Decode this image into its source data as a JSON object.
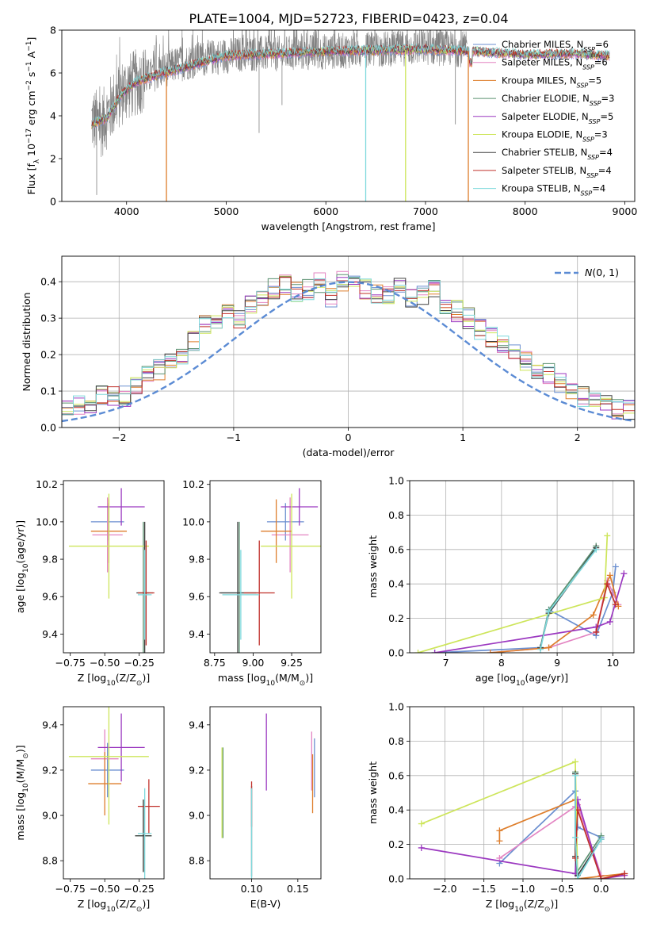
{
  "figure": {
    "title": "PLATE=1004, MJD=52723, FIBERID=0423, z=0.04"
  },
  "models": [
    {
      "name": "Chabrier MILES",
      "nssp": "6",
      "color": "#6b8fd0"
    },
    {
      "name": "Salpeter MILES",
      "nssp": "6",
      "color": "#e384c2"
    },
    {
      "name": "Kroupa MILES",
      "nssp": "5",
      "color": "#de7e2c"
    },
    {
      "name": "Chabrier ELODIE",
      "nssp": "3",
      "color": "#5a9070"
    },
    {
      "name": "Salpeter ELODIE",
      "nssp": "5",
      "color": "#9b38c0"
    },
    {
      "name": "Kroupa ELODIE",
      "nssp": "3",
      "color": "#cde55a"
    },
    {
      "name": "Chabrier STELIB",
      "nssp": "4",
      "color": "#404040"
    },
    {
      "name": "Salpeter STELIB",
      "nssp": "4",
      "color": "#c0302a"
    },
    {
      "name": "Kroupa STELIB",
      "nssp": "4",
      "color": "#7dd8dc"
    }
  ],
  "chart_data": [
    {
      "id": "spectrum",
      "type": "line",
      "xlabel": "wavelength [Angstrom, rest frame]",
      "ylabel": "Flux [f_λ 10^-17 erg cm^-2 s^-1 A^-1]",
      "xlim": [
        3350,
        9100
      ],
      "ylim": [
        0,
        8
      ],
      "xticks": [
        4000,
        5000,
        6000,
        7000,
        8000,
        9000
      ],
      "yticks": [
        0,
        2,
        4,
        6,
        8
      ],
      "data_color": "#808080",
      "data_x_range": [
        3650,
        7420
      ],
      "data_continuum": [
        [
          3650,
          3.8
        ],
        [
          3750,
          3.6
        ],
        [
          3900,
          4.8
        ],
        [
          4000,
          5.3
        ],
        [
          4200,
          5.8
        ],
        [
          4500,
          6.4
        ],
        [
          4800,
          6.7
        ],
        [
          5200,
          6.9
        ],
        [
          5600,
          6.9
        ],
        [
          6000,
          7.0
        ],
        [
          6500,
          7.1
        ],
        [
          7000,
          7.2
        ],
        [
          7420,
          7.1
        ]
      ],
      "model_x_range": [
        3650,
        8850
      ],
      "model_continuum": [
        [
          3650,
          3.6
        ],
        [
          3800,
          3.9
        ],
        [
          3950,
          5.0
        ],
        [
          4100,
          5.6
        ],
        [
          4300,
          5.9
        ],
        [
          4600,
          6.3
        ],
        [
          5000,
          6.8
        ],
        [
          5500,
          6.9
        ],
        [
          6000,
          7.0
        ],
        [
          6500,
          7.05
        ],
        [
          7000,
          7.1
        ],
        [
          7500,
          7.0
        ],
        [
          8000,
          6.85
        ],
        [
          8500,
          6.9
        ],
        [
          8850,
          6.8
        ]
      ],
      "model_dropouts": [
        [
          4400,
          2
        ],
        [
          6400,
          8
        ],
        [
          6800,
          5
        ],
        [
          7430,
          2
        ]
      ],
      "legend": "upper right"
    },
    {
      "id": "residuals",
      "type": "line",
      "xlabel": "(data-model)/error",
      "ylabel": "Normed distribution",
      "xlim": [
        -2.5,
        2.5
      ],
      "ylim": [
        0,
        0.47
      ],
      "xticks": [
        -2,
        -1,
        0,
        1,
        2
      ],
      "yticks": [
        0.0,
        0.1,
        0.2,
        0.3,
        0.4
      ],
      "grid": true,
      "hist_bin_width": 0.1,
      "hist_base": [
        0.02,
        0.03,
        0.04,
        0.045,
        0.05,
        0.055,
        0.06,
        0.07,
        0.085,
        0.09,
        0.085,
        0.12,
        0.14,
        0.16,
        0.18,
        0.2,
        0.24,
        0.28,
        0.3,
        0.31,
        0.3,
        0.34,
        0.36,
        0.38,
        0.39,
        0.37,
        0.38,
        0.4,
        0.36,
        0.4,
        0.41,
        0.38,
        0.37,
        0.36,
        0.4,
        0.35,
        0.36,
        0.38,
        0.33,
        0.32,
        0.3,
        0.27,
        0.25,
        0.23,
        0.21,
        0.18,
        0.16,
        0.15,
        0.12,
        0.1,
        0.085,
        0.08,
        0.07,
        0.05,
        0.045,
        0.04,
        0.035,
        0.03,
        0.025,
        0.025
      ],
      "gauss_name": "N(0,1)",
      "gauss_color": "#5b8bd4",
      "legend": "upper right"
    },
    {
      "id": "age-vs-Z",
      "type": "scatter",
      "xlabel": "Z [log10(Z/Z⊙)]",
      "ylabel": "age [log10(age/yr)]",
      "xlim": [
        -0.8,
        -0.07
      ],
      "ylim": [
        9.3,
        10.22
      ],
      "xticks": [
        -0.75,
        -0.5,
        -0.25
      ],
      "yticks": [
        9.4,
        9.6,
        9.8,
        10.0,
        10.2
      ],
      "points": [
        {
          "x": -0.48,
          "y": 10.0,
          "xerr": 0.12,
          "yerr": 0.1
        },
        {
          "x": -0.48,
          "y": 9.93,
          "xerr": 0.11,
          "yerr": 0.2
        },
        {
          "x": -0.47,
          "y": 9.95,
          "xerr": 0.13,
          "yerr": 0.17
        },
        {
          "x": -0.22,
          "y": 9.62,
          "xerr": 0.04,
          "yerr": 0.38
        },
        {
          "x": -0.38,
          "y": 10.08,
          "xerr": 0.17,
          "yerr": 0.1
        },
        {
          "x": -0.47,
          "y": 9.87,
          "xerr": 0.29,
          "yerr": 0.28
        },
        {
          "x": -0.21,
          "y": 9.62,
          "xerr": 0.06,
          "yerr": 0.38
        },
        {
          "x": -0.2,
          "y": 9.62,
          "xerr": 0.06,
          "yerr": 0.28
        },
        {
          "x": -0.21,
          "y": 9.61,
          "xerr": 0.05,
          "yerr": 0.24
        }
      ]
    },
    {
      "id": "age-vs-mass",
      "type": "scatter",
      "xlabel": "mass [log10(M/M⊙)]",
      "ylabel": "",
      "xlim": [
        8.72,
        9.44
      ],
      "ylim": [
        9.3,
        10.22
      ],
      "xticks": [
        8.75,
        9.0,
        9.25
      ],
      "yticks": [
        9.4,
        9.6,
        9.8,
        10.0,
        10.2
      ],
      "points": [
        {
          "x": 9.21,
          "y": 10.0,
          "xerr": 0.12,
          "yerr": 0.1
        },
        {
          "x": 9.24,
          "y": 9.93,
          "xerr": 0.12,
          "yerr": 0.2
        },
        {
          "x": 9.15,
          "y": 9.95,
          "xerr": 0.1,
          "yerr": 0.17
        },
        {
          "x": 8.91,
          "y": 9.62,
          "xerr": 0.12,
          "yerr": 0.38
        },
        {
          "x": 9.3,
          "y": 10.08,
          "xerr": 0.12,
          "yerr": 0.1
        },
        {
          "x": 9.25,
          "y": 9.87,
          "xerr": 0.2,
          "yerr": 0.28
        },
        {
          "x": 8.9,
          "y": 9.62,
          "xerr": 0.12,
          "yerr": 0.38
        },
        {
          "x": 9.04,
          "y": 9.62,
          "xerr": 0.1,
          "yerr": 0.28
        },
        {
          "x": 8.92,
          "y": 9.61,
          "xerr": 0.12,
          "yerr": 0.24
        }
      ]
    },
    {
      "id": "mass-weight-vs-age",
      "type": "line",
      "xlabel": "age [log10(age/yr)]",
      "ylabel": "mass weight",
      "xlim": [
        6.35,
        10.38
      ],
      "ylim": [
        0,
        1.0
      ],
      "xticks": [
        7,
        8,
        9,
        10
      ],
      "yticks": [
        0.0,
        0.2,
        0.4,
        0.6,
        0.8,
        1.0
      ],
      "grid": true,
      "series": [
        {
          "x": [
            6.8,
            8.7,
            8.85,
            9.7,
            10.0,
            10.05
          ],
          "y": [
            0.0,
            0.03,
            0.25,
            0.1,
            0.35,
            0.5
          ]
        },
        {
          "x": [
            7.8,
            8.85,
            9.7,
            9.9,
            10.1
          ],
          "y": [
            0.0,
            0.03,
            0.12,
            0.42,
            0.28
          ]
        },
        {
          "x": [
            7.8,
            8.85,
            9.65,
            9.95,
            10.1
          ],
          "y": [
            0.0,
            0.03,
            0.22,
            0.45,
            0.27
          ]
        },
        {
          "x": [
            8.7,
            8.85,
            9.7
          ],
          "y": [
            0.03,
            0.25,
            0.62
          ]
        },
        {
          "x": [
            6.8,
            9.7,
            9.95,
            10.2
          ],
          "y": [
            0.0,
            0.15,
            0.18,
            0.46
          ]
        },
        {
          "x": [
            6.5,
            9.85,
            9.9
          ],
          "y": [
            0.0,
            0.32,
            0.68
          ]
        },
        {
          "x": [
            8.7,
            8.85,
            9.7
          ],
          "y": [
            0.03,
            0.23,
            0.61
          ]
        },
        {
          "x": [
            9.7,
            9.9,
            10.05
          ],
          "y": [
            0.12,
            0.4,
            0.28
          ]
        },
        {
          "x": [
            8.7,
            8.85,
            9.7
          ],
          "y": [
            0.02,
            0.24,
            0.6
          ]
        }
      ]
    },
    {
      "id": "mass-vs-Z",
      "type": "scatter",
      "xlabel": "Z [log10(Z/Z⊙)]",
      "ylabel": "mass [log10(M/M⊙)]",
      "xlim": [
        -0.8,
        -0.07
      ],
      "ylim": [
        8.72,
        9.48
      ],
      "xticks": [
        -0.75,
        -0.5,
        -0.25
      ],
      "yticks": [
        8.8,
        9.0,
        9.2,
        9.4
      ],
      "points": [
        {
          "x": -0.48,
          "y": 9.2,
          "xerr": 0.12,
          "yerr": 0.12
        },
        {
          "x": -0.5,
          "y": 9.25,
          "xerr": 0.1,
          "yerr": 0.13
        },
        {
          "x": -0.5,
          "y": 9.14,
          "xerr": 0.12,
          "yerr": 0.14
        },
        {
          "x": -0.22,
          "y": 8.91,
          "xerr": 0.06,
          "yerr": 0.16
        },
        {
          "x": -0.38,
          "y": 9.3,
          "xerr": 0.17,
          "yerr": 0.15
        },
        {
          "x": -0.47,
          "y": 9.26,
          "xerr": 0.29,
          "yerr": 0.3
        },
        {
          "x": -0.22,
          "y": 8.91,
          "xerr": 0.06,
          "yerr": 0.16
        },
        {
          "x": -0.18,
          "y": 9.04,
          "xerr": 0.08,
          "yerr": 0.12
        },
        {
          "x": -0.21,
          "y": 8.92,
          "xerr": 0.05,
          "yerr": 0.2
        }
      ]
    },
    {
      "id": "mass-vs-ebv",
      "type": "scatter",
      "xlabel": "E(B-V)",
      "ylabel": "",
      "xlim": [
        0.055,
        0.175
      ],
      "ylim": [
        8.72,
        9.48
      ],
      "xticks": [
        0.1,
        0.15
      ],
      "yticks": [
        8.8,
        9.0,
        9.2,
        9.4
      ],
      "points": [
        {
          "x": 0.168,
          "y": 9.21,
          "xerr": 0,
          "yerr": 0.13
        },
        {
          "x": 0.165,
          "y": 9.24,
          "xerr": 0,
          "yerr": 0.13
        },
        {
          "x": 0.166,
          "y": 9.14,
          "xerr": 0,
          "yerr": 0.13
        },
        {
          "x": 0.069,
          "y": 9.1,
          "xerr": 0,
          "yerr": 0.2
        },
        {
          "x": 0.116,
          "y": 9.28,
          "xerr": 0,
          "yerr": 0.17
        },
        {
          "x": 0.068,
          "y": 9.1,
          "xerr": 0,
          "yerr": 0.2
        },
        {
          "x": 0.1,
          "y": 8.93,
          "xerr": 0,
          "yerr": 0.2
        },
        {
          "x": 0.1,
          "y": 9.05,
          "xerr": 0,
          "yerr": 0.1
        },
        {
          "x": 0.1,
          "y": 8.92,
          "xerr": 0,
          "yerr": 0.2
        }
      ]
    },
    {
      "id": "mass-weight-vs-Z",
      "type": "line",
      "xlabel": "Z [log10(Z/Z⊙)]",
      "ylabel": "mass weight",
      "xlim": [
        -2.45,
        0.42
      ],
      "ylim": [
        0,
        1.0
      ],
      "xticks": [
        -2.0,
        -1.5,
        -1.0,
        -0.5,
        0.0
      ],
      "yticks": [
        0.0,
        0.2,
        0.4,
        0.6,
        0.8,
        1.0
      ],
      "grid": true,
      "series": [
        {
          "x": [
            -1.3,
            -0.33,
            -0.3,
            0.0
          ],
          "y": [
            0.09,
            0.51,
            0.3,
            0.24
          ]
        },
        {
          "x": [
            -1.3,
            -0.33,
            -0.3,
            0.0
          ],
          "y": [
            0.12,
            0.42,
            0.43,
            0.02
          ]
        },
        {
          "x": [
            -1.3,
            -1.3,
            -0.33,
            -0.3,
            0.3
          ],
          "y": [
            0.22,
            0.28,
            0.46,
            0.0,
            0.03
          ]
        },
        {
          "x": [
            -0.33,
            -0.32,
            0.0
          ],
          "y": [
            0.62,
            0.03,
            0.25
          ]
        },
        {
          "x": [
            -2.3,
            -0.33,
            -0.3,
            0.0,
            0.3
          ],
          "y": [
            0.18,
            0.03,
            0.46,
            0.0,
            0.02
          ]
        },
        {
          "x": [
            -2.3,
            -0.33,
            -0.3
          ],
          "y": [
            0.32,
            0.68,
            0.0
          ]
        },
        {
          "x": [
            -0.33,
            -0.33,
            -0.3,
            0.0
          ],
          "y": [
            0.61,
            0.13,
            0.02,
            0.23
          ]
        },
        {
          "x": [
            -0.33,
            -0.3,
            0.0,
            0.3
          ],
          "y": [
            0.12,
            0.4,
            0.0,
            0.03
          ]
        },
        {
          "x": [
            -0.33,
            -0.33,
            -0.3,
            0.0
          ],
          "y": [
            0.6,
            0.24,
            0.0,
            0.23
          ]
        }
      ]
    }
  ]
}
